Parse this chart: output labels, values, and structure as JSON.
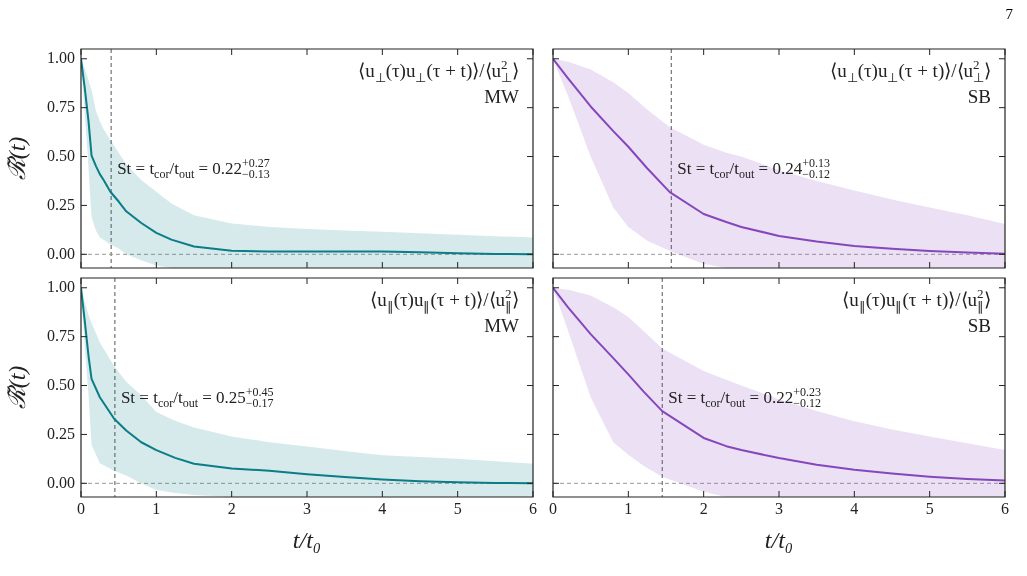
{
  "chart_data": [
    {
      "type": "line",
      "ylabel": "ℛ̃(t)",
      "xlim": [
        0,
        6
      ],
      "ylim": [
        -0.07,
        1.05
      ],
      "xticks": [
        {
          "value": 0,
          "label": null
        },
        {
          "value": 1,
          "label": null
        },
        {
          "value": 2,
          "label": null
        },
        {
          "value": 3,
          "label": null
        },
        {
          "value": 4,
          "label": null
        },
        {
          "value": 5,
          "label": null
        },
        {
          "value": 6,
          "label": null
        }
      ],
      "yticks": [
        {
          "value": 0,
          "label": "0.00"
        },
        {
          "value": 0.25,
          "label": "0.25"
        },
        {
          "value": 0.5,
          "label": "0.50"
        },
        {
          "value": 0.75,
          "label": "0.75"
        },
        {
          "value": 1,
          "label": "1.00"
        }
      ],
      "tick_labels": "y",
      "series": [
        {
          "color": "#0b7d87",
          "x": [
            0,
            0.05,
            0.1,
            0.14,
            0.2,
            0.25,
            0.3,
            0.39,
            0.5,
            0.6,
            0.8,
            1,
            1.2,
            1.5,
            2,
            2.5,
            3,
            3.5,
            4,
            4.5,
            5,
            5.5,
            6
          ],
          "values": [
            1,
            0.85,
            0.68,
            0.505,
            0.45,
            0.41,
            0.38,
            0.32,
            0.27,
            0.22,
            0.16,
            0.11,
            0.075,
            0.04,
            0.018,
            0.015,
            0.015,
            0.015,
            0.014,
            0.011,
            0.006,
            0.002,
            0
          ],
          "lower": [
            1,
            0.72,
            0.44,
            0.19,
            0.12,
            0.086,
            0.075,
            0.05,
            0.03,
            0,
            -0.03,
            -0.057,
            -0.07,
            -0.07,
            -0.07,
            -0.07,
            -0.07,
            -0.07,
            -0.07,
            -0.07,
            -0.07,
            -0.07,
            -0.07
          ],
          "upper": [
            1,
            0.95,
            0.89,
            0.84,
            0.73,
            0.68,
            0.64,
            0.585,
            0.52,
            0.46,
            0.38,
            0.32,
            0.26,
            0.2,
            0.157,
            0.14,
            0.13,
            0.122,
            0.116,
            0.108,
            0.1,
            0.093,
            0.086
          ]
        }
      ],
      "ref_lines": [
        {
          "axis": "x",
          "value": 0.4,
          "line_style": "dashed",
          "color": "#555555"
        },
        {
          "axis": "y",
          "value": 0,
          "line_style": "dashed",
          "color": "#999999"
        }
      ],
      "annotations": [
        "⟨u$_{⊥}$(τ)u$_{⊥}$(τ + t)⟩/⟨u$_{⊥}$$^{2}$⟩",
        "MW",
        "St = t$_{cor}$/t$_{out}$ = 0.22$^{+0.27}$$_{−0.13}$"
      ]
    },
    {
      "type": "line",
      "xlim": [
        0,
        6
      ],
      "ylim": [
        -0.07,
        1.05
      ],
      "xticks": [
        {
          "value": 0,
          "label": null
        },
        {
          "value": 1,
          "label": null
        },
        {
          "value": 2,
          "label": null
        },
        {
          "value": 3,
          "label": null
        },
        {
          "value": 4,
          "label": null
        },
        {
          "value": 5,
          "label": null
        },
        {
          "value": 6,
          "label": null
        }
      ],
      "yticks": [
        {
          "value": 0,
          "label": null
        },
        {
          "value": 0.25,
          "label": null
        },
        {
          "value": 0.5,
          "label": null
        },
        {
          "value": 0.75,
          "label": null
        },
        {
          "value": 1,
          "label": null
        }
      ],
      "tick_labels": false,
      "series": [
        {
          "color": "#8648bd",
          "x": [
            0,
            0.2,
            0.5,
            0.8,
            1,
            1.25,
            1.55,
            2,
            2.3,
            2.5,
            3,
            3.5,
            4,
            4.5,
            5,
            5.5,
            6
          ],
          "values": [
            1,
            0.9,
            0.756,
            0.63,
            0.55,
            0.44,
            0.318,
            0.206,
            0.165,
            0.14,
            0.094,
            0.065,
            0.043,
            0.028,
            0.017,
            0.009,
            0.003
          ],
          "lower": [
            1,
            0.81,
            0.5,
            0.24,
            0.14,
            0.07,
            0.017,
            -0.05,
            -0.07,
            -0.07,
            -0.07,
            -0.07,
            -0.07,
            -0.07,
            -0.07,
            -0.07,
            -0.07
          ],
          "upper": [
            1,
            0.985,
            0.945,
            0.88,
            0.825,
            0.74,
            0.65,
            0.56,
            0.52,
            0.5,
            0.43,
            0.375,
            0.326,
            0.28,
            0.24,
            0.2,
            0.155
          ]
        }
      ],
      "ref_lines": [
        {
          "axis": "x",
          "value": 1.57,
          "line_style": "dashed",
          "color": "#555555"
        },
        {
          "axis": "y",
          "value": 0,
          "line_style": "dashed",
          "color": "#999999"
        }
      ],
      "annotations": [
        "⟨u$_{⊥}$(τ)u$_{⊥}$(τ + t)⟩/⟨u$_{⊥}$$^{2}$⟩",
        "SB",
        "St = t$_{cor}$/t$_{out}$ = 0.24$^{+0.13}$$_{−0.12}$",
        "7"
      ]
    },
    {
      "type": "line",
      "xlabel": "t/t₀",
      "ylabel": "ℛ̃(t)",
      "xlim": [
        0,
        6
      ],
      "ylim": [
        -0.07,
        1.05
      ],
      "xticks": [
        0,
        1,
        2,
        3,
        4,
        5,
        6
      ],
      "yticks": [
        {
          "value": 0,
          "label": "0.00"
        },
        {
          "value": 0.25,
          "label": "0.25"
        },
        {
          "value": 0.5,
          "label": "0.50"
        },
        {
          "value": 0.75,
          "label": "0.75"
        },
        {
          "value": 1,
          "label": "1.00"
        }
      ],
      "series": [
        {
          "color": "#0b7d87",
          "x": [
            0,
            0.05,
            0.1,
            0.14,
            0.25,
            0.44,
            0.6,
            0.8,
            1,
            1.25,
            1.5,
            2,
            2.5,
            3,
            3.5,
            4,
            4.5,
            5,
            5.5,
            6
          ],
          "values": [
            1,
            0.83,
            0.65,
            0.534,
            0.44,
            0.33,
            0.27,
            0.21,
            0.17,
            0.13,
            0.1,
            0.076,
            0.064,
            0.046,
            0.032,
            0.02,
            0.011,
            0.005,
            0.002,
            0
          ],
          "lower": [
            1,
            0.7,
            0.45,
            0.197,
            0.103,
            0.064,
            0.04,
            0,
            -0.034,
            -0.05,
            -0.06,
            -0.07,
            -0.07,
            -0.07,
            -0.07,
            -0.07,
            -0.07,
            -0.07,
            -0.07,
            -0.07
          ],
          "upper": [
            1,
            0.93,
            0.86,
            0.82,
            0.72,
            0.6,
            0.52,
            0.45,
            0.365,
            0.32,
            0.285,
            0.24,
            0.21,
            0.188,
            0.165,
            0.144,
            0.135,
            0.126,
            0.113,
            0.1
          ]
        }
      ],
      "ref_lines": [
        {
          "axis": "x",
          "value": 0.45,
          "line_style": "dashed",
          "color": "#555555"
        },
        {
          "axis": "y",
          "value": 0,
          "line_style": "dashed",
          "color": "#999999"
        }
      ],
      "annotations": [
        "⟨u$_{∥}$(τ)u$_{∥}$(τ + t)⟩/⟨u$_{∥}$$^{2}$⟩",
        "MW",
        "St = t$_{cor}$/t$_{out}$ = 0.25$^{+0.45}$$_{−0.17}$"
      ]
    },
    {
      "type": "line",
      "xlabel": "t/t₀",
      "xlim": [
        0,
        6
      ],
      "ylim": [
        -0.07,
        1.05
      ],
      "xticks": [
        0,
        1,
        2,
        3,
        4,
        5,
        6
      ],
      "yticks": [
        {
          "value": 0,
          "label": null
        },
        {
          "value": 0.25,
          "label": null
        },
        {
          "value": 0.5,
          "label": null
        },
        {
          "value": 0.75,
          "label": null
        },
        {
          "value": 1,
          "label": null
        }
      ],
      "tick_labels": "x",
      "series": [
        {
          "color": "#8648bd",
          "x": [
            0,
            0.2,
            0.5,
            0.8,
            1,
            1.2,
            1.45,
            2,
            2.3,
            2.5,
            3,
            3.5,
            4,
            4.5,
            5,
            5.5,
            6
          ],
          "values": [
            1,
            0.9,
            0.763,
            0.64,
            0.557,
            0.47,
            0.369,
            0.232,
            0.19,
            0.17,
            0.129,
            0.095,
            0.069,
            0.05,
            0.034,
            0.022,
            0.014
          ],
          "lower": [
            1,
            0.78,
            0.44,
            0.21,
            0.146,
            0.09,
            0.034,
            -0.043,
            -0.07,
            -0.07,
            -0.07,
            -0.07,
            -0.07,
            -0.07,
            -0.07,
            -0.07,
            -0.07
          ],
          "upper": [
            1,
            0.99,
            0.96,
            0.9,
            0.85,
            0.78,
            0.69,
            0.575,
            0.53,
            0.5,
            0.43,
            0.37,
            0.317,
            0.275,
            0.24,
            0.205,
            0.17
          ]
        }
      ],
      "ref_lines": [
        {
          "axis": "x",
          "value": 1.45,
          "line_style": "dashed",
          "color": "#555555"
        },
        {
          "axis": "y",
          "value": 0,
          "line_style": "dashed",
          "color": "#999999"
        }
      ],
      "annotations": [
        "⟨u$_{∥}$(τ)u$_{∥}$(τ + t)⟩/⟨u$_{∥}$$^{2}$⟩",
        "SB",
        "St = t$_{cor}$/t$_{out}$ = 0.22$^{+0.23}$$_{−0.12}$"
      ]
    }
  ]
}
